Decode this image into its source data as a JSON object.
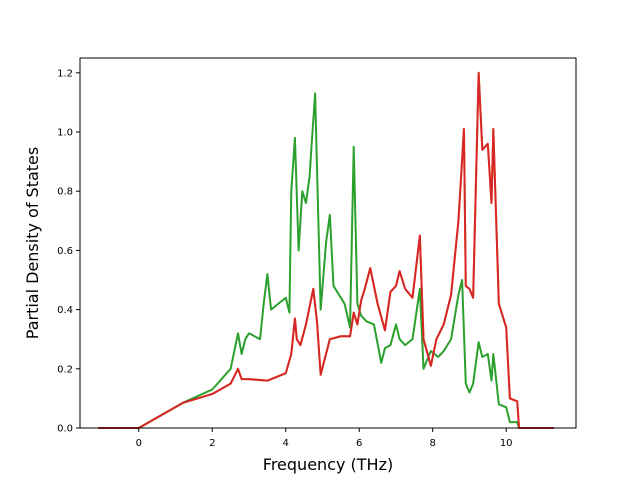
{
  "chart_data": {
    "type": "line",
    "xlabel": "Frequency (THz)",
    "ylabel": "Partial Density of States",
    "xlim": [
      -1.6,
      11.9
    ],
    "ylim": [
      0.0,
      1.25
    ],
    "xticks": [
      0,
      2,
      4,
      6,
      8,
      10
    ],
    "yticks": [
      0.0,
      0.2,
      0.4,
      0.6,
      0.8,
      1.0,
      1.2
    ],
    "xtick_labels": [
      "0",
      "2",
      "4",
      "6",
      "8",
      "10"
    ],
    "ytick_labels": [
      "0.0",
      "0.2",
      "0.4",
      "0.6",
      "0.8",
      "1.0",
      "1.2"
    ],
    "grid": false,
    "series": [
      {
        "color": "#ff7f0e",
        "x": [
          -1.1,
          0.0,
          1.2,
          1.6,
          2.0,
          2.5,
          2.7,
          2.8,
          3.0,
          3.5,
          4.0,
          4.15,
          4.25,
          4.3,
          4.4,
          4.55,
          4.75,
          4.85,
          4.95,
          5.2,
          5.5,
          5.75,
          5.85,
          5.95,
          6.05,
          6.15,
          6.3,
          6.5,
          6.7,
          6.85,
          7.0,
          7.1,
          7.25,
          7.45,
          7.65,
          7.75,
          7.95,
          8.1,
          8.3,
          8.5,
          8.7,
          8.85,
          8.9,
          9.0,
          9.1,
          9.25,
          9.35,
          9.5,
          9.6,
          9.65,
          9.8,
          10.0,
          10.1,
          10.3,
          10.35,
          11.3
        ],
        "y": [
          0.0,
          0.0,
          0.085,
          0.1,
          0.115,
          0.15,
          0.2,
          0.165,
          0.165,
          0.16,
          0.185,
          0.25,
          0.37,
          0.3,
          0.28,
          0.35,
          0.47,
          0.36,
          0.18,
          0.3,
          0.31,
          0.31,
          0.39,
          0.35,
          0.43,
          0.47,
          0.54,
          0.42,
          0.33,
          0.46,
          0.48,
          0.53,
          0.47,
          0.44,
          0.65,
          0.3,
          0.21,
          0.3,
          0.35,
          0.45,
          0.7,
          1.01,
          0.48,
          0.47,
          0.44,
          1.2,
          0.94,
          0.96,
          0.76,
          1.01,
          0.42,
          0.34,
          0.1,
          0.09,
          0.0,
          0.0
        ]
      },
      {
        "color": "#2ca02c",
        "x": [
          -1.1,
          0.0,
          1.2,
          2.0,
          2.5,
          2.7,
          2.8,
          2.9,
          3.0,
          3.3,
          3.4,
          3.5,
          3.6,
          4.0,
          4.1,
          4.15,
          4.25,
          4.35,
          4.45,
          4.55,
          4.65,
          4.7,
          4.8,
          4.85,
          4.95,
          5.1,
          5.2,
          5.3,
          5.6,
          5.75,
          5.85,
          5.95,
          6.05,
          6.2,
          6.4,
          6.6,
          6.7,
          6.85,
          7.0,
          7.1,
          7.25,
          7.45,
          7.65,
          7.75,
          7.95,
          8.15,
          8.3,
          8.5,
          8.7,
          8.8,
          8.9,
          9.0,
          9.1,
          9.25,
          9.35,
          9.5,
          9.6,
          9.65,
          9.8,
          10.0,
          10.1,
          10.3,
          10.35,
          11.3
        ],
        "y": [
          0.0,
          0.0,
          0.085,
          0.13,
          0.2,
          0.32,
          0.25,
          0.3,
          0.32,
          0.3,
          0.42,
          0.52,
          0.4,
          0.44,
          0.39,
          0.8,
          0.98,
          0.6,
          0.8,
          0.76,
          0.85,
          0.95,
          1.13,
          0.88,
          0.4,
          0.63,
          0.72,
          0.48,
          0.42,
          0.34,
          0.95,
          0.42,
          0.38,
          0.36,
          0.35,
          0.22,
          0.27,
          0.28,
          0.35,
          0.3,
          0.28,
          0.3,
          0.47,
          0.2,
          0.26,
          0.24,
          0.26,
          0.3,
          0.45,
          0.5,
          0.15,
          0.12,
          0.15,
          0.29,
          0.24,
          0.25,
          0.16,
          0.25,
          0.08,
          0.07,
          0.02,
          0.02,
          0.0,
          0.0
        ]
      },
      {
        "color": "#d62728",
        "x": [
          -1.1,
          0.0,
          1.2,
          1.6,
          2.0,
          2.5,
          2.7,
          2.8,
          3.0,
          3.5,
          4.0,
          4.15,
          4.25,
          4.3,
          4.4,
          4.55,
          4.75,
          4.85,
          4.95,
          5.2,
          5.5,
          5.75,
          5.85,
          5.95,
          6.05,
          6.15,
          6.3,
          6.5,
          6.7,
          6.85,
          7.0,
          7.1,
          7.25,
          7.45,
          7.65,
          7.75,
          7.95,
          8.1,
          8.3,
          8.5,
          8.7,
          8.85,
          8.9,
          9.0,
          9.1,
          9.25,
          9.35,
          9.5,
          9.6,
          9.65,
          9.8,
          10.0,
          10.1,
          10.3,
          10.35,
          11.3
        ],
        "y": [
          0.0,
          0.0,
          0.085,
          0.1,
          0.115,
          0.15,
          0.2,
          0.165,
          0.165,
          0.16,
          0.185,
          0.25,
          0.37,
          0.3,
          0.28,
          0.35,
          0.47,
          0.36,
          0.18,
          0.3,
          0.31,
          0.31,
          0.39,
          0.35,
          0.43,
          0.47,
          0.54,
          0.42,
          0.33,
          0.46,
          0.48,
          0.53,
          0.47,
          0.44,
          0.65,
          0.3,
          0.21,
          0.3,
          0.35,
          0.45,
          0.7,
          1.01,
          0.48,
          0.47,
          0.44,
          1.2,
          0.94,
          0.96,
          0.76,
          1.01,
          0.42,
          0.34,
          0.1,
          0.09,
          0.0,
          0.0
        ]
      }
    ]
  }
}
